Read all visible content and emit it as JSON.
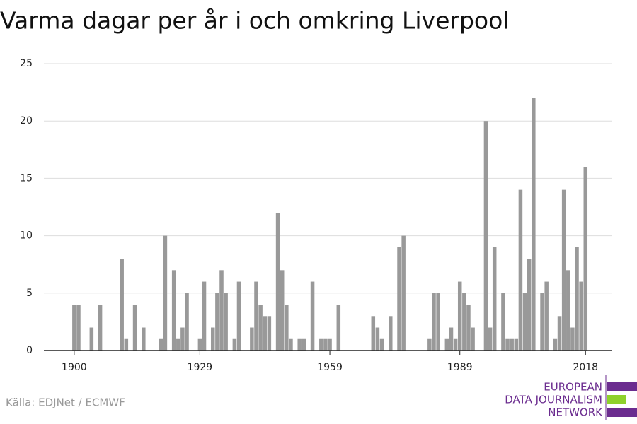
{
  "chart_data": {
    "type": "bar",
    "title": "Varma dagar per år i och omkring Liverpool",
    "source": "Källa: EDJNet / ECMWF",
    "logo": [
      "EUROPEAN",
      "DATA JOURNALISM",
      "NETWORK"
    ],
    "color": "#999999",
    "x": [
      1900,
      1901,
      1902,
      1903,
      1904,
      1905,
      1906,
      1907,
      1908,
      1909,
      1910,
      1911,
      1912,
      1913,
      1914,
      1915,
      1916,
      1917,
      1918,
      1919,
      1920,
      1921,
      1922,
      1923,
      1924,
      1925,
      1926,
      1927,
      1928,
      1929,
      1930,
      1931,
      1932,
      1933,
      1934,
      1935,
      1936,
      1937,
      1938,
      1939,
      1940,
      1941,
      1942,
      1943,
      1944,
      1945,
      1946,
      1947,
      1948,
      1949,
      1950,
      1951,
      1952,
      1953,
      1954,
      1955,
      1956,
      1957,
      1958,
      1959,
      1960,
      1961,
      1962,
      1963,
      1964,
      1965,
      1966,
      1967,
      1968,
      1969,
      1970,
      1971,
      1972,
      1973,
      1974,
      1975,
      1976,
      1977,
      1978,
      1979,
      1980,
      1981,
      1982,
      1983,
      1984,
      1985,
      1986,
      1987,
      1988,
      1989,
      1990,
      1991,
      1992,
      1993,
      1994,
      1995,
      1996,
      1997,
      1998,
      1999,
      2000,
      2001,
      2002,
      2003,
      2004,
      2005,
      2006,
      2007,
      2008,
      2009,
      2010,
      2011,
      2012,
      2013,
      2014,
      2015,
      2016,
      2017,
      2018
    ],
    "values": [
      4,
      4,
      0,
      0,
      2,
      0,
      4,
      0,
      0,
      0,
      0,
      8,
      1,
      0,
      4,
      0,
      2,
      0,
      0,
      0,
      1,
      10,
      0,
      7,
      1,
      2,
      5,
      0,
      0,
      1,
      6,
      0,
      2,
      5,
      7,
      5,
      0,
      1,
      6,
      0,
      0,
      2,
      6,
      4,
      3,
      3,
      0,
      12,
      7,
      4,
      1,
      0,
      1,
      1,
      0,
      6,
      0,
      1,
      1,
      1,
      0,
      4,
      0,
      0,
      0,
      0,
      0,
      0,
      0,
      3,
      2,
      1,
      0,
      3,
      0,
      9,
      10,
      0,
      0,
      0,
      0,
      0,
      1,
      5,
      5,
      0,
      1,
      2,
      1,
      6,
      5,
      4,
      2,
      0,
      0,
      20,
      2,
      9,
      0,
      5,
      1,
      1,
      1,
      14,
      5,
      8,
      22,
      0,
      5,
      6,
      0,
      1,
      3,
      14,
      7,
      2,
      9,
      6,
      16
    ],
    "xlim": [
      1893,
      2024
    ],
    "xticks": [
      1900,
      1929,
      1959,
      1989,
      2018
    ],
    "ylim": [
      0,
      25
    ],
    "yticks": [
      0,
      5,
      10,
      15,
      20,
      25
    ],
    "grid": true
  }
}
